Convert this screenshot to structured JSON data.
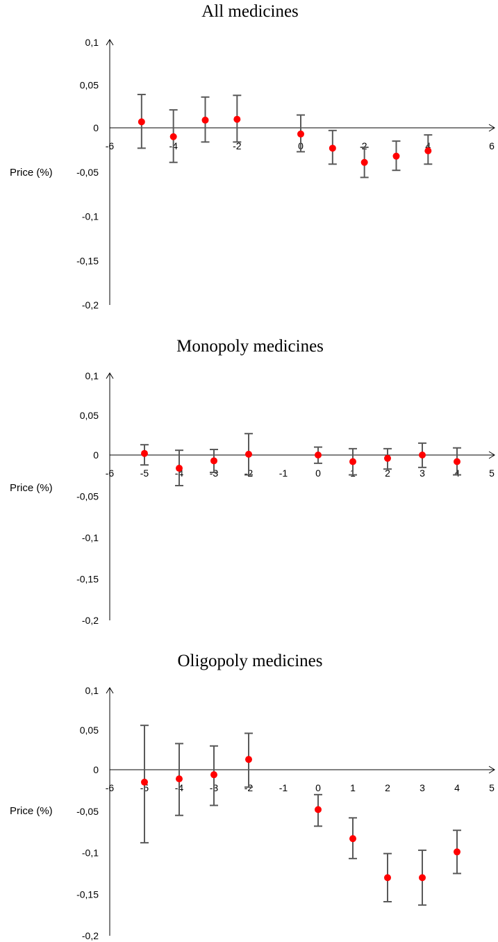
{
  "chart_data": [
    {
      "type": "scatter",
      "title": "All medicines",
      "ylabel": "Price (%)",
      "xlim": [
        -6,
        6
      ],
      "ylim": [
        -0.2,
        0.1
      ],
      "x_ticks": [
        "-6",
        "-4",
        "-2",
        "0",
        "2",
        "4",
        "6"
      ],
      "y_ticks": [
        "0,1",
        "0,05",
        "0",
        "-0,05",
        "-0,1",
        "-0,15",
        "-0,2"
      ],
      "marker_color": "#ff0000",
      "errorbar_color": "#595959",
      "points": [
        {
          "x": -5,
          "y": 0.007,
          "lo": -0.023,
          "hi": 0.039
        },
        {
          "x": -4,
          "y": -0.01,
          "lo": -0.039,
          "hi": 0.021
        },
        {
          "x": -3,
          "y": 0.009,
          "lo": -0.016,
          "hi": 0.036
        },
        {
          "x": -2,
          "y": 0.01,
          "lo": -0.016,
          "hi": 0.038
        },
        {
          "x": 0,
          "y": -0.007,
          "lo": -0.027,
          "hi": 0.015
        },
        {
          "x": 1,
          "y": -0.023,
          "lo": -0.041,
          "hi": -0.003
        },
        {
          "x": 2,
          "y": -0.039,
          "lo": -0.056,
          "hi": -0.022
        },
        {
          "x": 3,
          "y": -0.032,
          "lo": -0.048,
          "hi": -0.015
        },
        {
          "x": 4,
          "y": -0.026,
          "lo": -0.041,
          "hi": -0.008
        }
      ]
    },
    {
      "type": "scatter",
      "title": "Monopoly medicines",
      "ylabel": "Price (%)",
      "xlim": [
        -6,
        5
      ],
      "ylim": [
        -0.2,
        0.1
      ],
      "x_ticks": [
        "-6",
        "-5",
        "-4",
        "-3",
        "-2",
        "-1",
        "0",
        "1",
        "2",
        "3",
        "4",
        "5"
      ],
      "y_ticks": [
        "0,1",
        "0,05",
        "0",
        "-0,05",
        "-0,1",
        "-0,15",
        "-0,2"
      ],
      "marker_color": "#ff0000",
      "errorbar_color": "#595959",
      "points": [
        {
          "x": -5,
          "y": 0.002,
          "lo": -0.012,
          "hi": 0.013
        },
        {
          "x": -4,
          "y": -0.016,
          "lo": -0.037,
          "hi": 0.006
        },
        {
          "x": -3,
          "y": -0.007,
          "lo": -0.021,
          "hi": 0.007
        },
        {
          "x": -2,
          "y": 0.001,
          "lo": -0.024,
          "hi": 0.027
        },
        {
          "x": 0,
          "y": 0.0,
          "lo": -0.01,
          "hi": 0.01
        },
        {
          "x": 1,
          "y": -0.008,
          "lo": -0.024,
          "hi": 0.008
        },
        {
          "x": 2,
          "y": -0.004,
          "lo": -0.017,
          "hi": 0.008
        },
        {
          "x": 3,
          "y": 0.0,
          "lo": -0.015,
          "hi": 0.015
        },
        {
          "x": 4,
          "y": -0.008,
          "lo": -0.024,
          "hi": 0.009
        }
      ]
    },
    {
      "type": "scatter",
      "title": "Oligopoly medicines",
      "ylabel": "Price (%)",
      "xlim": [
        -6,
        5
      ],
      "ylim": [
        -0.2,
        0.1
      ],
      "x_ticks": [
        "-6",
        "-5",
        "-4",
        "-3",
        "-2",
        "-1",
        "0",
        "1",
        "2",
        "3",
        "4",
        "5"
      ],
      "y_ticks": [
        "0,1",
        "0,05",
        "0",
        "-0,05",
        "-0,1",
        "-0,15",
        "-0,2"
      ],
      "marker_color": "#ff0000",
      "errorbar_color": "#595959",
      "points": [
        {
          "x": -5,
          "y": -0.015,
          "lo": -0.088,
          "hi": 0.056
        },
        {
          "x": -4,
          "y": -0.011,
          "lo": -0.055,
          "hi": 0.033
        },
        {
          "x": -3,
          "y": -0.006,
          "lo": -0.043,
          "hi": 0.03
        },
        {
          "x": -2,
          "y": 0.013,
          "lo": -0.021,
          "hi": 0.046
        },
        {
          "x": 0,
          "y": -0.048,
          "lo": -0.068,
          "hi": -0.03
        },
        {
          "x": 1,
          "y": -0.083,
          "lo": -0.107,
          "hi": -0.058
        },
        {
          "x": 2,
          "y": -0.13,
          "lo": -0.159,
          "hi": -0.101
        },
        {
          "x": 3,
          "y": -0.13,
          "lo": -0.163,
          "hi": -0.097
        },
        {
          "x": 4,
          "y": -0.099,
          "lo": -0.125,
          "hi": -0.073
        }
      ]
    }
  ]
}
